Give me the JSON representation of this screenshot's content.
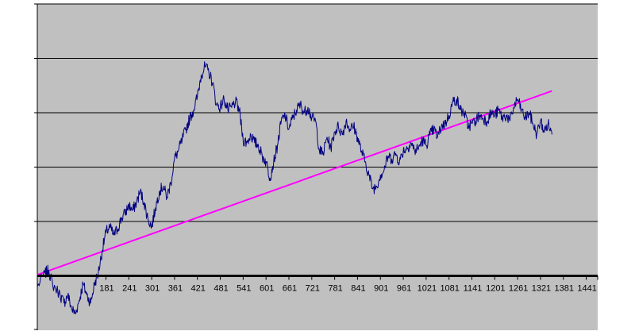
{
  "chart_data": {
    "type": "line",
    "title": "",
    "xlabel": "",
    "ylabel": "",
    "x_tick_labels": [
      "181",
      "241",
      "301",
      "361",
      "421",
      "481",
      "541",
      "601",
      "661",
      "721",
      "781",
      "841",
      "901",
      "961",
      "1021",
      "1081",
      "1141",
      "1201",
      "1261",
      "1321",
      "1381",
      "1441"
    ],
    "x_tick_values": [
      181,
      241,
      301,
      361,
      421,
      481,
      541,
      601,
      661,
      721,
      781,
      841,
      901,
      961,
      1021,
      1081,
      1141,
      1201,
      1261,
      1321,
      1381,
      1441
    ],
    "xlim": [
      1,
      1471
    ],
    "ylim": [
      -1,
      5
    ],
    "y_gridlines": [
      1,
      2,
      3,
      4,
      5
    ],
    "baseline_y": 0,
    "grid": true,
    "legend": "none",
    "colors": {
      "plot_background": "#c0c0c0",
      "series": "#000080",
      "trend": "#ff00ff",
      "gridline": "#000000",
      "baseline": "#000000"
    },
    "series": [
      {
        "values_anchor": [
          [
            1,
            -0.2
          ],
          [
            21,
            0.05
          ],
          [
            31,
            0.1
          ],
          [
            41,
            -0.15
          ],
          [
            61,
            -0.35
          ],
          [
            71,
            -0.5
          ],
          [
            81,
            -0.35
          ],
          [
            91,
            -0.6
          ],
          [
            101,
            -0.7
          ],
          [
            111,
            -0.45
          ],
          [
            121,
            -0.15
          ],
          [
            131,
            -0.35
          ],
          [
            141,
            -0.5
          ],
          [
            151,
            -0.15
          ],
          [
            161,
            0.05
          ],
          [
            171,
            0.45
          ],
          [
            181,
            0.8
          ],
          [
            191,
            0.9
          ],
          [
            201,
            0.75
          ],
          [
            211,
            0.85
          ],
          [
            221,
            1.05
          ],
          [
            231,
            1.15
          ],
          [
            241,
            1.3
          ],
          [
            251,
            1.2
          ],
          [
            261,
            1.35
          ],
          [
            271,
            1.55
          ],
          [
            281,
            1.35
          ],
          [
            291,
            1.05
          ],
          [
            301,
            0.9
          ],
          [
            311,
            1.25
          ],
          [
            321,
            1.55
          ],
          [
            331,
            1.65
          ],
          [
            341,
            1.45
          ],
          [
            351,
            1.7
          ],
          [
            361,
            2.15
          ],
          [
            371,
            2.3
          ],
          [
            381,
            2.5
          ],
          [
            391,
            2.7
          ],
          [
            401,
            2.9
          ],
          [
            411,
            3.05
          ],
          [
            421,
            3.3
          ],
          [
            431,
            3.7
          ],
          [
            441,
            3.85
          ],
          [
            451,
            3.75
          ],
          [
            461,
            3.55
          ],
          [
            471,
            3.15
          ],
          [
            481,
            3.1
          ],
          [
            491,
            3.25
          ],
          [
            501,
            3.05
          ],
          [
            511,
            3.1
          ],
          [
            521,
            3.2
          ],
          [
            531,
            3.05
          ],
          [
            541,
            2.5
          ],
          [
            551,
            2.45
          ],
          [
            561,
            2.6
          ],
          [
            571,
            2.45
          ],
          [
            581,
            2.4
          ],
          [
            591,
            2.2
          ],
          [
            601,
            2.1
          ],
          [
            611,
            1.8
          ],
          [
            621,
            2.1
          ],
          [
            631,
            2.4
          ],
          [
            641,
            2.85
          ],
          [
            651,
            2.95
          ],
          [
            661,
            2.7
          ],
          [
            671,
            2.9
          ],
          [
            681,
            3.05
          ],
          [
            691,
            3.15
          ],
          [
            701,
            3.0
          ],
          [
            711,
            3.1
          ],
          [
            721,
            2.9
          ],
          [
            731,
            2.85
          ],
          [
            741,
            2.3
          ],
          [
            751,
            2.25
          ],
          [
            761,
            2.55
          ],
          [
            771,
            2.35
          ],
          [
            781,
            2.65
          ],
          [
            791,
            2.75
          ],
          [
            801,
            2.6
          ],
          [
            811,
            2.85
          ],
          [
            821,
            2.7
          ],
          [
            831,
            2.75
          ],
          [
            841,
            2.55
          ],
          [
            851,
            2.3
          ],
          [
            861,
            2.1
          ],
          [
            871,
            1.85
          ],
          [
            881,
            1.6
          ],
          [
            891,
            1.65
          ],
          [
            901,
            1.85
          ],
          [
            911,
            1.95
          ],
          [
            921,
            2.2
          ],
          [
            931,
            2.15
          ],
          [
            941,
            2.25
          ],
          [
            951,
            2.1
          ],
          [
            961,
            2.3
          ],
          [
            971,
            2.35
          ],
          [
            981,
            2.45
          ],
          [
            991,
            2.3
          ],
          [
            1001,
            2.35
          ],
          [
            1011,
            2.5
          ],
          [
            1021,
            2.4
          ],
          [
            1031,
            2.6
          ],
          [
            1041,
            2.7
          ],
          [
            1051,
            2.55
          ],
          [
            1061,
            2.75
          ],
          [
            1071,
            2.8
          ],
          [
            1081,
            2.95
          ],
          [
            1091,
            3.2
          ],
          [
            1101,
            3.25
          ],
          [
            1111,
            3.05
          ],
          [
            1121,
            3.0
          ],
          [
            1131,
            2.75
          ],
          [
            1141,
            2.8
          ],
          [
            1151,
            2.85
          ],
          [
            1161,
            2.95
          ],
          [
            1171,
            2.9
          ],
          [
            1181,
            2.85
          ],
          [
            1191,
            3.0
          ],
          [
            1201,
            2.95
          ],
          [
            1211,
            3.05
          ],
          [
            1221,
            2.9
          ],
          [
            1231,
            2.95
          ],
          [
            1241,
            2.85
          ],
          [
            1251,
            3.1
          ],
          [
            1261,
            3.25
          ],
          [
            1271,
            3.05
          ],
          [
            1281,
            2.9
          ],
          [
            1291,
            3.0
          ],
          [
            1301,
            2.8
          ],
          [
            1311,
            2.6
          ],
          [
            1321,
            2.85
          ],
          [
            1331,
            2.65
          ],
          [
            1341,
            2.8
          ],
          [
            1351,
            2.6
          ]
        ]
      },
      {
        "values_anchor": [
          [
            1,
            0.02
          ],
          [
            1351,
            3.4
          ]
        ]
      }
    ]
  }
}
